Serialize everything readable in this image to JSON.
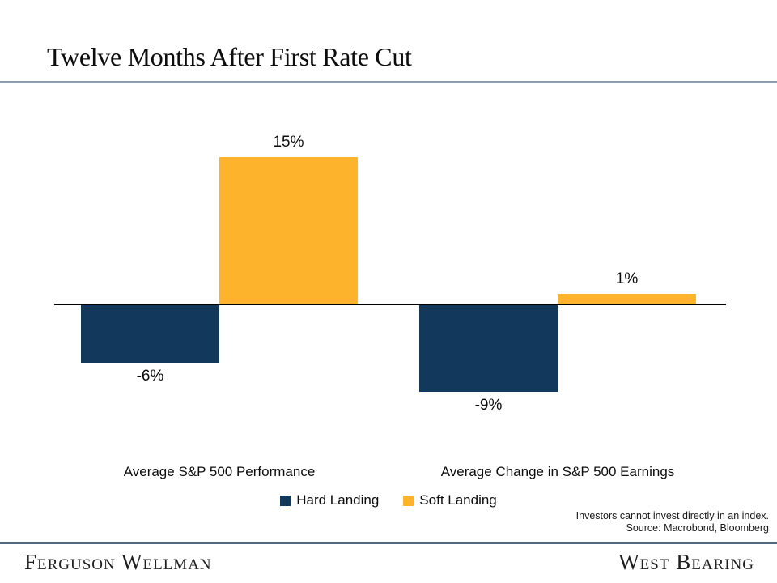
{
  "slide": {
    "title": "Twelve Months After First Rate Cut"
  },
  "chart_data": {
    "type": "bar",
    "title": "Twelve Months After First Rate Cut",
    "categories": [
      "Average S&P 500 Performance",
      "Average Change in S&P 500 Earnings"
    ],
    "series": [
      {
        "name": "Hard Landing",
        "color": "#12395b",
        "values": [
          -6,
          -9
        ],
        "labels": [
          "-6%",
          "-9%"
        ]
      },
      {
        "name": "Soft Landing",
        "color": "#fdb32b",
        "values": [
          15,
          1
        ],
        "labels": [
          "15%",
          "1%"
        ]
      }
    ],
    "xlabel": "",
    "ylabel": "",
    "ylim": [
      -10.5,
      16
    ],
    "grid": false,
    "axis_color": "#000000",
    "legend_position": "bottom"
  },
  "disclaimer": {
    "line1": "Investors cannot invest directly in an index.",
    "line2": "Source: Macrobond, Bloomberg"
  },
  "footer": {
    "left_brand": "Ferguson Wellman",
    "right_brand": "West Bearing"
  }
}
